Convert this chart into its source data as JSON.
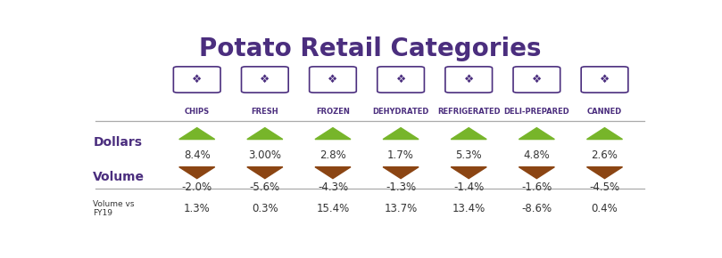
{
  "title": "Potato Retail Categories",
  "title_color": "#4B2E7E",
  "title_fontsize": 20,
  "categories": [
    "CHIPS",
    "FRESH",
    "FROZEN",
    "DEHYDRATED",
    "REFRIGERATED",
    "DELI-PREPARED",
    "CANNED"
  ],
  "dollars_values": [
    "8.4%",
    "3.00%",
    "2.8%",
    "1.7%",
    "5.3%",
    "4.8%",
    "2.6%"
  ],
  "volume_values": [
    "-2.0%",
    "-5.6%",
    "-4.3%",
    "-1.3%",
    "-1.4%",
    "-1.6%",
    "-4.5%"
  ],
  "fy19_values": [
    "1.3%",
    "0.3%",
    "15.4%",
    "13.7%",
    "13.4%",
    "-8.6%",
    "0.4%"
  ],
  "row_labels": [
    "Dollars",
    "Volume",
    "Volume vs\nFY19"
  ],
  "row_label_color": "#4B2E7E",
  "up_arrow_color": "#77B52A",
  "down_arrow_color": "#8B4513",
  "text_color": "#333333",
  "background_color": "#FFFFFF",
  "category_label_color": "#4B2E7E",
  "line_color": "#AAAAAA"
}
